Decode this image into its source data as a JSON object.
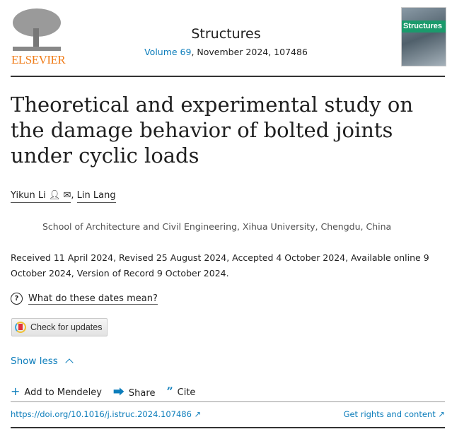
{
  "header": {
    "publisher_logo_text": "ELSEVIER",
    "journal": "Structures",
    "volume_link": "Volume 69",
    "volume_rest": ", November 2024, 107486",
    "cover_title": "Structures"
  },
  "article": {
    "title": "Theoretical and experimental study on the damage behavior of bolted joints under cyclic loads",
    "authors": [
      "Yikun Li",
      "Lin Lang"
    ],
    "author_sep": ", ",
    "affiliation": "School of Architecture and Civil Engineering, Xihua University, Chengdu, China",
    "dates": "Received 11 April 2024, Revised 25 August 2024, Accepted 4 October 2024, Available online 9 October 2024, Version of Record 9 October 2024.",
    "dates_help": "What do these dates mean?",
    "check_updates": "Check for updates",
    "show_less": "Show less",
    "actions": {
      "mendeley": "Add to Mendeley",
      "share": "Share",
      "cite": "Cite"
    },
    "doi": "https://doi.org/10.1016/j.istruc.2024.107486",
    "rights": "Get rights and content"
  }
}
